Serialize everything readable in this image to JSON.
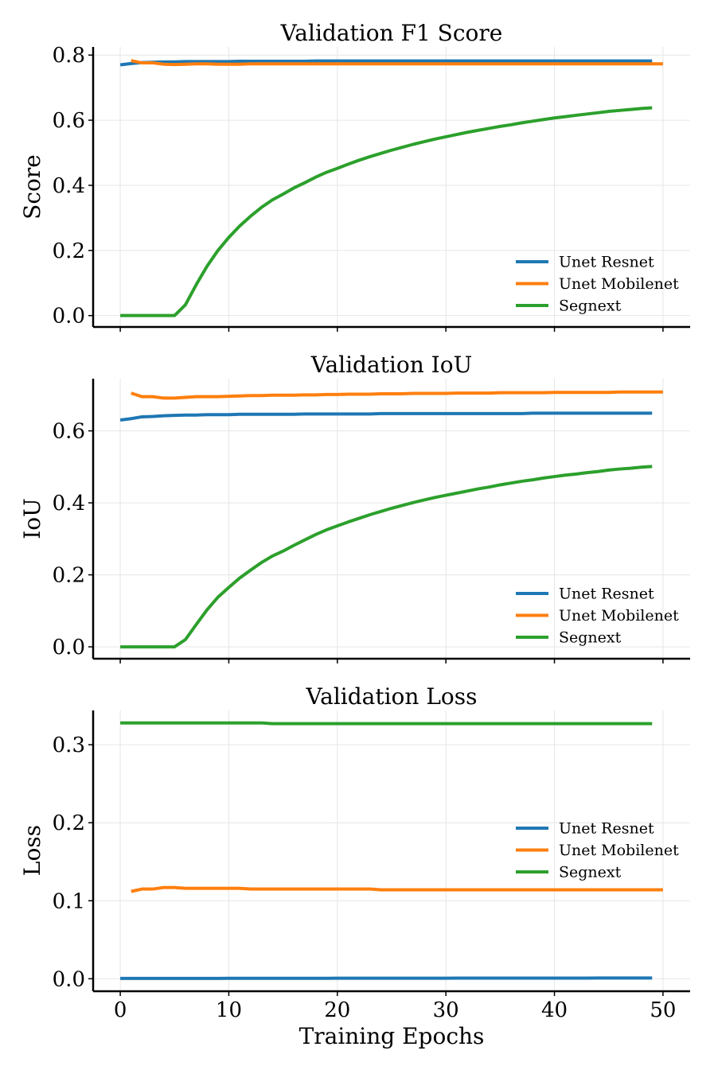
{
  "colors": {
    "unet_resnet": "#1f77b4",
    "unet_mobilenet": "#ff7f0e",
    "segnext": "#2ca02c"
  },
  "shared_xlabel": "Training Epochs",
  "chart_data": [
    {
      "type": "line",
      "title": "Validation F1 Score",
      "xlabel": "",
      "ylabel": "Score",
      "xlim": [
        -2.5,
        52.5
      ],
      "ylim": [
        -0.035,
        0.825
      ],
      "xticks": [
        0,
        10,
        20,
        30,
        40,
        50
      ],
      "xtick_labels": [
        "",
        "",
        "",
        "",
        "",
        ""
      ],
      "yticks": [
        0.0,
        0.2,
        0.4,
        0.6,
        0.8
      ],
      "ytick_labels": [
        "0.0",
        "0.2",
        "0.4",
        "0.6",
        "0.8"
      ],
      "grid": true,
      "legend": "lower-right",
      "series": [
        {
          "name": "Unet Resnet",
          "color": "#1f77b4",
          "x_start": 0,
          "values": [
            0.77,
            0.774,
            0.777,
            0.778,
            0.779,
            0.779,
            0.78,
            0.78,
            0.78,
            0.78,
            0.78,
            0.781,
            0.781,
            0.781,
            0.781,
            0.781,
            0.781,
            0.781,
            0.782,
            0.782,
            0.782,
            0.782,
            0.782,
            0.782,
            0.782,
            0.782,
            0.782,
            0.782,
            0.782,
            0.782,
            0.782,
            0.782,
            0.782,
            0.782,
            0.782,
            0.782,
            0.782,
            0.782,
            0.782,
            0.782,
            0.782,
            0.782,
            0.782,
            0.782,
            0.782,
            0.782,
            0.782,
            0.782,
            0.782,
            0.782
          ]
        },
        {
          "name": "Unet Mobilenet",
          "color": "#ff7f0e",
          "x_start": 1,
          "values": [
            0.783,
            0.776,
            0.776,
            0.772,
            0.771,
            0.772,
            0.773,
            0.773,
            0.772,
            0.772,
            0.772,
            0.773,
            0.773,
            0.773,
            0.773,
            0.773,
            0.773,
            0.773,
            0.773,
            0.773,
            0.773,
            0.773,
            0.773,
            0.773,
            0.773,
            0.773,
            0.773,
            0.773,
            0.773,
            0.773,
            0.773,
            0.773,
            0.773,
            0.773,
            0.773,
            0.773,
            0.773,
            0.773,
            0.773,
            0.773,
            0.773,
            0.773,
            0.773,
            0.773,
            0.773,
            0.773,
            0.773,
            0.773,
            0.773,
            0.773
          ]
        },
        {
          "name": "Segnext",
          "color": "#2ca02c",
          "x_start": 0,
          "values": [
            0.0,
            0.0,
            0.0,
            0.0,
            0.0,
            0.0,
            0.033,
            0.095,
            0.152,
            0.2,
            0.24,
            0.275,
            0.305,
            0.332,
            0.355,
            0.373,
            0.392,
            0.408,
            0.425,
            0.44,
            0.452,
            0.465,
            0.477,
            0.488,
            0.498,
            0.508,
            0.517,
            0.526,
            0.534,
            0.542,
            0.549,
            0.556,
            0.563,
            0.569,
            0.575,
            0.581,
            0.586,
            0.592,
            0.597,
            0.602,
            0.607,
            0.611,
            0.615,
            0.619,
            0.623,
            0.627,
            0.63,
            0.633,
            0.636,
            0.638
          ]
        }
      ]
    },
    {
      "type": "line",
      "title": "Validation IoU",
      "xlabel": "",
      "ylabel": "IoU",
      "xlim": [
        -2.5,
        52.5
      ],
      "ylim": [
        -0.033,
        0.745
      ],
      "xticks": [
        0,
        10,
        20,
        30,
        40,
        50
      ],
      "xtick_labels": [
        "",
        "",
        "",
        "",
        "",
        ""
      ],
      "yticks": [
        0.0,
        0.2,
        0.4,
        0.6
      ],
      "ytick_labels": [
        "0.0",
        "0.2",
        "0.4",
        "0.6"
      ],
      "grid": true,
      "legend": "lower-right",
      "series": [
        {
          "name": "Unet Resnet",
          "color": "#1f77b4",
          "x_start": 0,
          "values": [
            0.63,
            0.634,
            0.639,
            0.64,
            0.642,
            0.643,
            0.644,
            0.644,
            0.645,
            0.645,
            0.645,
            0.646,
            0.646,
            0.646,
            0.646,
            0.646,
            0.646,
            0.647,
            0.647,
            0.647,
            0.647,
            0.647,
            0.647,
            0.647,
            0.648,
            0.648,
            0.648,
            0.648,
            0.648,
            0.648,
            0.648,
            0.648,
            0.648,
            0.648,
            0.648,
            0.648,
            0.648,
            0.648,
            0.649,
            0.649,
            0.649,
            0.649,
            0.649,
            0.649,
            0.649,
            0.649,
            0.649,
            0.649,
            0.649,
            0.649
          ]
        },
        {
          "name": "Unet Mobilenet",
          "color": "#ff7f0e",
          "x_start": 1,
          "values": [
            0.705,
            0.695,
            0.695,
            0.691,
            0.691,
            0.693,
            0.695,
            0.695,
            0.695,
            0.696,
            0.697,
            0.698,
            0.698,
            0.699,
            0.699,
            0.699,
            0.7,
            0.7,
            0.701,
            0.701,
            0.702,
            0.702,
            0.702,
            0.703,
            0.703,
            0.703,
            0.704,
            0.704,
            0.704,
            0.704,
            0.705,
            0.705,
            0.705,
            0.705,
            0.706,
            0.706,
            0.706,
            0.706,
            0.706,
            0.707,
            0.707,
            0.707,
            0.707,
            0.707,
            0.707,
            0.708,
            0.708,
            0.708,
            0.708,
            0.708
          ]
        },
        {
          "name": "Segnext",
          "color": "#2ca02c",
          "x_start": 0,
          "values": [
            0.0,
            0.0,
            0.0,
            0.0,
            0.0,
            0.0,
            0.02,
            0.062,
            0.103,
            0.138,
            0.165,
            0.191,
            0.213,
            0.234,
            0.252,
            0.266,
            0.282,
            0.297,
            0.312,
            0.325,
            0.336,
            0.347,
            0.357,
            0.367,
            0.376,
            0.385,
            0.393,
            0.401,
            0.408,
            0.415,
            0.421,
            0.427,
            0.433,
            0.439,
            0.444,
            0.45,
            0.455,
            0.46,
            0.464,
            0.469,
            0.473,
            0.477,
            0.48,
            0.484,
            0.487,
            0.491,
            0.494,
            0.496,
            0.499,
            0.501
          ]
        }
      ]
    },
    {
      "type": "line",
      "title": "Validation Loss",
      "xlabel": "Training Epochs",
      "ylabel": "Loss",
      "xlim": [
        -2.5,
        52.5
      ],
      "ylim": [
        -0.016,
        0.344
      ],
      "xticks": [
        0,
        10,
        20,
        30,
        40,
        50
      ],
      "xtick_labels": [
        "0",
        "10",
        "20",
        "30",
        "40",
        "50"
      ],
      "yticks": [
        0.0,
        0.1,
        0.2,
        0.3
      ],
      "ytick_labels": [
        "0.0",
        "0.1",
        "0.2",
        "0.3"
      ],
      "grid": true,
      "legend": "center-right",
      "series": [
        {
          "name": "Unet Resnet",
          "color": "#1f77b4",
          "x_start": 0,
          "values": [
            0.0005,
            0.0005,
            0.0005,
            0.0005,
            0.0005,
            0.0005,
            0.0005,
            0.0005,
            0.0005,
            0.0005,
            0.0006,
            0.0006,
            0.0006,
            0.0006,
            0.0006,
            0.0006,
            0.0006,
            0.0006,
            0.0006,
            0.0006,
            0.0007,
            0.0007,
            0.0007,
            0.0007,
            0.0007,
            0.0007,
            0.0007,
            0.0007,
            0.0007,
            0.0007,
            0.0007,
            0.0008,
            0.0008,
            0.0008,
            0.0008,
            0.0008,
            0.0008,
            0.0008,
            0.0008,
            0.0008,
            0.0008,
            0.0008,
            0.0008,
            0.0008,
            0.0009,
            0.0009,
            0.0009,
            0.0009,
            0.0009,
            0.0009
          ]
        },
        {
          "name": "Unet Mobilenet",
          "color": "#ff7f0e",
          "x_start": 1,
          "values": [
            0.112,
            0.115,
            0.115,
            0.117,
            0.117,
            0.116,
            0.116,
            0.116,
            0.116,
            0.116,
            0.116,
            0.115,
            0.115,
            0.115,
            0.115,
            0.115,
            0.115,
            0.115,
            0.115,
            0.115,
            0.115,
            0.115,
            0.115,
            0.114,
            0.114,
            0.114,
            0.114,
            0.114,
            0.114,
            0.114,
            0.114,
            0.114,
            0.114,
            0.114,
            0.114,
            0.114,
            0.114,
            0.114,
            0.114,
            0.114,
            0.114,
            0.114,
            0.114,
            0.114,
            0.114,
            0.114,
            0.114,
            0.114,
            0.114,
            0.114
          ]
        },
        {
          "name": "Segnext",
          "color": "#2ca02c",
          "x_start": 0,
          "values": [
            0.328,
            0.328,
            0.328,
            0.328,
            0.328,
            0.328,
            0.328,
            0.328,
            0.328,
            0.328,
            0.328,
            0.328,
            0.328,
            0.328,
            0.327,
            0.327,
            0.327,
            0.327,
            0.327,
            0.327,
            0.327,
            0.327,
            0.327,
            0.327,
            0.327,
            0.327,
            0.327,
            0.327,
            0.327,
            0.327,
            0.327,
            0.327,
            0.327,
            0.327,
            0.327,
            0.327,
            0.327,
            0.327,
            0.327,
            0.327,
            0.327,
            0.327,
            0.327,
            0.327,
            0.327,
            0.327,
            0.327,
            0.327,
            0.327,
            0.327
          ]
        }
      ]
    }
  ]
}
